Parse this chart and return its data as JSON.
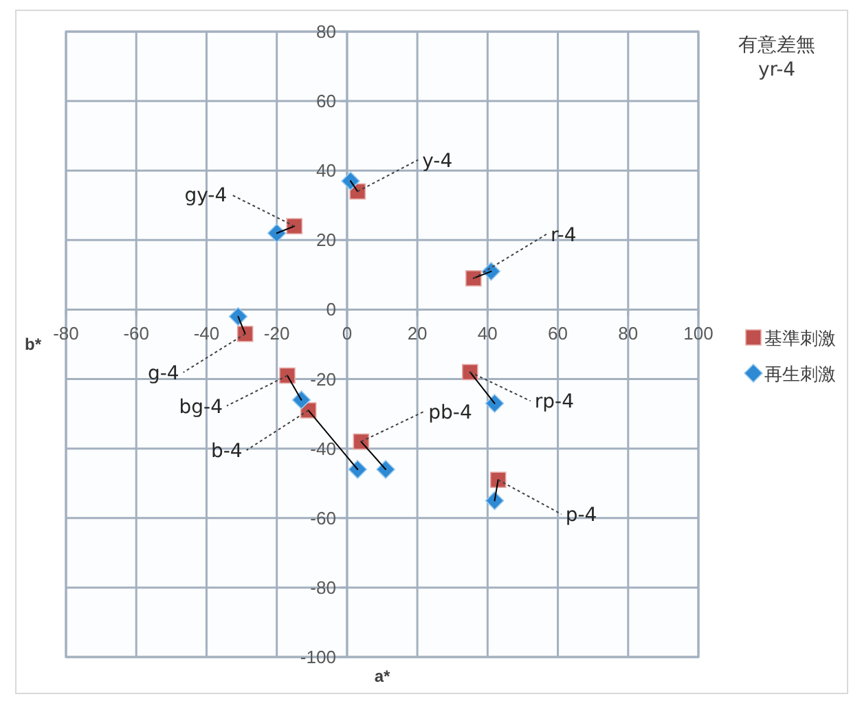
{
  "chart_data": {
    "type": "scatter",
    "title": "有意差無",
    "subtitle": "yr-4",
    "xlabel": "a*",
    "ylabel": "b*",
    "xlim": [
      -80,
      100
    ],
    "ylim": [
      -100,
      80
    ],
    "xticks": [
      -80,
      -60,
      -40,
      -20,
      0,
      20,
      40,
      60,
      80,
      100
    ],
    "yticks": [
      -100,
      -80,
      -60,
      -40,
      -20,
      0,
      20,
      40,
      60,
      80
    ],
    "grid": true,
    "legend": "right",
    "series": [
      {
        "name": "基準刺激",
        "color": "#c0504d",
        "marker": "square",
        "x": [
          -15,
          3,
          36,
          -29,
          -17,
          -11,
          4,
          35,
          43
        ],
        "values": [
          24,
          34,
          9,
          -7,
          -19,
          -29,
          -38,
          -18,
          -49
        ]
      },
      {
        "name": "再生刺激",
        "color": "#2e8ad4",
        "marker": "diamond",
        "x": [
          -20,
          1,
          41,
          -31,
          -13,
          3,
          11,
          42,
          42
        ],
        "values": [
          22,
          37,
          11,
          -2,
          -26,
          -46,
          -46,
          -27,
          -55
        ]
      },
      {
        "type": "line",
        "color": "#000000",
        "x": [
          -15,
          -20
        ],
        "values": [
          24,
          22
        ]
      },
      {
        "type": "line",
        "color": "#000000",
        "x": [
          3,
          1
        ],
        "values": [
          34,
          37
        ]
      },
      {
        "type": "line",
        "color": "#000000",
        "x": [
          36,
          41
        ],
        "values": [
          9,
          11
        ]
      },
      {
        "type": "line",
        "color": "#000000",
        "x": [
          -29,
          -31
        ],
        "values": [
          -7,
          -2
        ]
      },
      {
        "type": "line",
        "color": "#000000",
        "x": [
          -17,
          -13
        ],
        "values": [
          -19,
          -26
        ]
      },
      {
        "type": "line",
        "color": "#000000",
        "x": [
          -11,
          3
        ],
        "values": [
          -29,
          -46
        ]
      },
      {
        "type": "line",
        "color": "#000000",
        "x": [
          4,
          11
        ],
        "values": [
          -38,
          -46
        ]
      },
      {
        "type": "line",
        "color": "#000000",
        "x": [
          35,
          42
        ],
        "values": [
          -18,
          -27
        ]
      },
      {
        "type": "line",
        "color": "#000000",
        "x": [
          43,
          42
        ],
        "values": [
          -49,
          -55
        ]
      }
    ],
    "annotations": [
      {
        "text": "gy-4",
        "x": -15,
        "y": 24
      },
      {
        "text": "y-4",
        "x": 3,
        "y": 34
      },
      {
        "text": "r-4",
        "x": 36,
        "y": 9
      },
      {
        "text": "g-4",
        "x": -29,
        "y": -7
      },
      {
        "text": "bg-4",
        "x": -17,
        "y": -19
      },
      {
        "text": "b-4",
        "x": -11,
        "y": -29
      },
      {
        "text": "pb-4",
        "x": 4,
        "y": -38
      },
      {
        "text": "rp-4",
        "x": 35,
        "y": -18
      },
      {
        "text": "p-4",
        "x": 43,
        "y": -49
      }
    ]
  }
}
